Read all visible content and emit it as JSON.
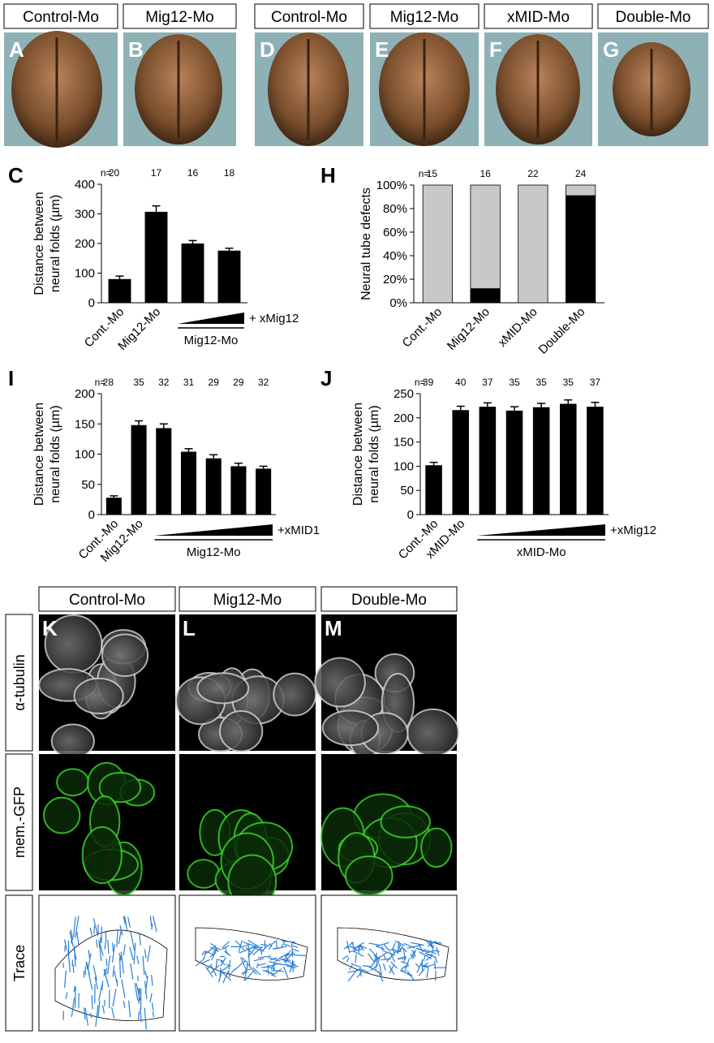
{
  "top_panels": {
    "headers": [
      "Control-Mo",
      "Mig12-Mo",
      "Control-Mo",
      "Mig12-Mo",
      "xMID-Mo",
      "Double-Mo"
    ],
    "letters": [
      "A",
      "B",
      "D",
      "E",
      "F",
      "G"
    ]
  },
  "chart_data": [
    {
      "type": "bar",
      "panel": "C",
      "y_label": [
        "Distance between",
        "neural folds (µm)"
      ],
      "n_prefix": "n=",
      "n": [
        20,
        17,
        16,
        18
      ],
      "categories": [
        "Cont.-Mo",
        "Mig12-Mo",
        null,
        null
      ],
      "values": [
        80,
        307,
        200,
        176
      ],
      "errors": [
        10,
        20,
        10,
        8
      ],
      "color": "#000000",
      "ylim": [
        0,
        400
      ],
      "yticks": [
        0,
        100,
        200,
        300,
        400
      ],
      "group": {
        "label": "Mig12-Mo",
        "annotation": "+ xMig12"
      }
    },
    {
      "type": "stacked_bar",
      "panel": "H",
      "y_label": [
        "Neural tube defects"
      ],
      "n_prefix": "n=",
      "n": [
        15,
        16,
        22,
        24
      ],
      "categories": [
        "Cont.-Mo",
        "Mig12-Mo",
        "xMID-Mo",
        "Double-Mo"
      ],
      "series": [
        {
          "color": "#000000",
          "values": [
            0,
            12,
            0,
            91
          ]
        },
        {
          "color": "#c8c8c8",
          "values": [
            100,
            88,
            100,
            9
          ]
        }
      ],
      "ylim": [
        0,
        100
      ],
      "yticks": [
        {
          "value": 0,
          "label": "0%"
        },
        {
          "value": 20,
          "label": "20%"
        },
        {
          "value": 40,
          "label": "40%"
        },
        {
          "value": 60,
          "label": "60%"
        },
        {
          "value": 80,
          "label": "80%"
        },
        {
          "value": 100,
          "label": "100%"
        }
      ]
    },
    {
      "type": "bar",
      "panel": "I",
      "y_label": [
        "Distance between",
        "neural folds (µm)"
      ],
      "n_prefix": "n=",
      "n": [
        28,
        35,
        32,
        31,
        29,
        29,
        32
      ],
      "categories": [
        "Cont.-Mo",
        "Mig12-Mo",
        null,
        null,
        null,
        null,
        null
      ],
      "values": [
        28,
        148,
        143,
        104,
        93,
        80,
        76
      ],
      "errors": [
        3,
        7,
        7,
        5,
        6,
        5,
        4
      ],
      "color": "#000000",
      "ylim": [
        0,
        200
      ],
      "yticks": [
        0,
        50,
        100,
        150,
        200
      ],
      "group": {
        "label": "Mig12-Mo",
        "annotation": "+xMID1"
      }
    },
    {
      "type": "bar",
      "panel": "J",
      "y_label": [
        "Distance between",
        "neural folds (µm)"
      ],
      "n_prefix": "n=",
      "n": [
        39,
        40,
        37,
        35,
        35,
        35,
        37
      ],
      "categories": [
        "Cont.-Mo",
        "xMID-Mo",
        null,
        null,
        null,
        null,
        null
      ],
      "values": [
        102,
        216,
        223,
        215,
        222,
        229,
        223
      ],
      "errors": [
        6,
        8,
        8,
        8,
        8,
        8,
        9
      ],
      "color": "#000000",
      "ylim": [
        0,
        250
      ],
      "yticks": [
        0,
        50,
        100,
        150,
        200,
        250
      ],
      "group": {
        "label": "xMID-Mo",
        "annotation": "+xMig12"
      }
    }
  ],
  "bottom_panels": {
    "headers": [
      "Control-Mo",
      "Mig12-Mo",
      "Double-Mo"
    ],
    "letters": [
      "K",
      "L",
      "M"
    ],
    "row_labels": [
      "α-tubulin",
      "mem.-GFP",
      "Trace"
    ]
  }
}
